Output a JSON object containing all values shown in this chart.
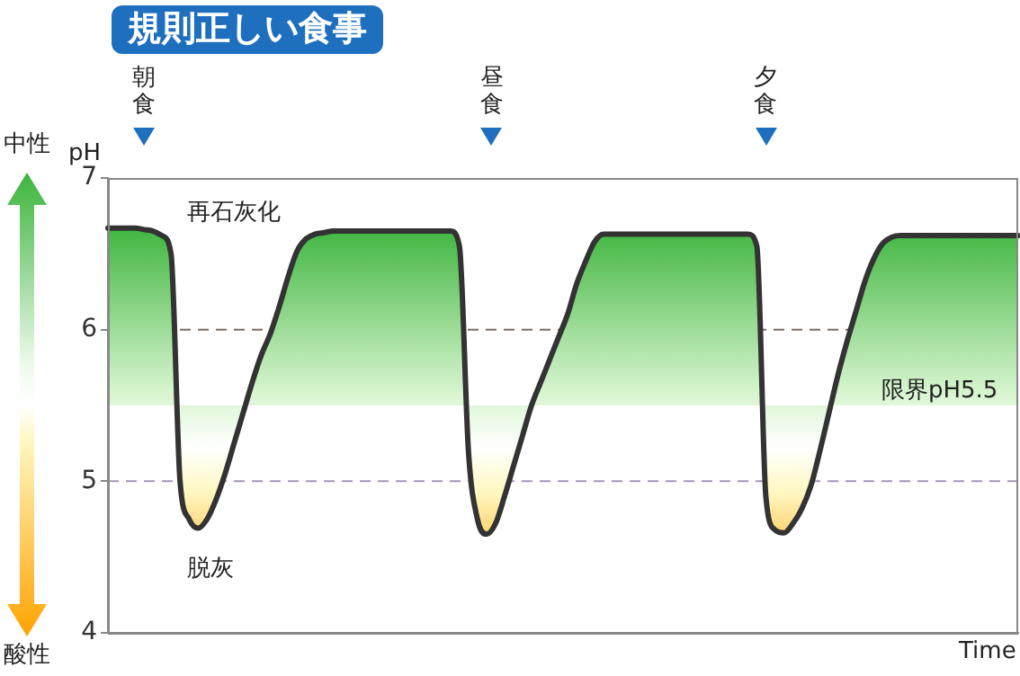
{
  "chart_data": {
    "type": "area",
    "title": "規則正しい食事",
    "ylabel": "pH",
    "xlabel": "Time",
    "categories": [
      null,
      null,
      null,
      null,
      null,
      null,
      null,
      null,
      null,
      null,
      null,
      null,
      null,
      null,
      null,
      null,
      null,
      null,
      null,
      null,
      null,
      null,
      null,
      null,
      null,
      null,
      null,
      null,
      null,
      null,
      null,
      null,
      null,
      null,
      null,
      null,
      null,
      null,
      null,
      null,
      null,
      null,
      null,
      null,
      null,
      null,
      null,
      null,
      null,
      null,
      null,
      null,
      null,
      null,
      null,
      null,
      null,
      null,
      null,
      null,
      null,
      null,
      null,
      null,
      null,
      null,
      null,
      null,
      null,
      null,
      null,
      null,
      null,
      null,
      null,
      null,
      null,
      null,
      null,
      null,
      null,
      null,
      null,
      null,
      null,
      null,
      null,
      null,
      null,
      null,
      null,
      null,
      null,
      null,
      null,
      null,
      null,
      null,
      null,
      null,
      null,
      null
    ],
    "series": [
      {
        "color": "#333333",
        "values": [
          6.67,
          6.67,
          6.67,
          6.67,
          6.66,
          6.65,
          6.62,
          6.5,
          5.0,
          4.75,
          4.69,
          4.75,
          4.88,
          5.05,
          5.25,
          5.45,
          5.65,
          5.83,
          5.97,
          6.15,
          6.35,
          6.52,
          6.6,
          6.63,
          6.64,
          6.65,
          6.65,
          6.65,
          6.65,
          6.65,
          6.65,
          6.65,
          6.65,
          6.65,
          6.65,
          6.65,
          6.65,
          6.65,
          6.65,
          6.55,
          5.2,
          4.75,
          4.65,
          4.72,
          4.9,
          5.1,
          5.3,
          5.5,
          5.65,
          5.8,
          5.95,
          6.1,
          6.3,
          6.45,
          6.58,
          6.63,
          6.63,
          6.63,
          6.63,
          6.63,
          6.63,
          6.63,
          6.63,
          6.63,
          6.63,
          6.63,
          6.63,
          6.63,
          6.63,
          6.63,
          6.63,
          6.63,
          6.55,
          4.9,
          4.68,
          4.66,
          4.72,
          4.82,
          4.97,
          5.2,
          5.45,
          5.7,
          5.92,
          6.12,
          6.32,
          6.47,
          6.57,
          6.61,
          6.62,
          6.62,
          6.62,
          6.62,
          6.62,
          6.62,
          6.62,
          6.62,
          6.62,
          6.62,
          6.62,
          6.62,
          6.62,
          6.62
        ]
      }
    ],
    "ylim": [
      4,
      7
    ],
    "yticks": [
      4,
      5,
      6,
      7
    ],
    "grid": false,
    "legend": false,
    "tick_labels": "y",
    "ref_lines": [
      {
        "axis": "y",
        "value": 6,
        "color": "#7a6e66",
        "line_style": "dashed"
      },
      {
        "axis": "y",
        "value": 5,
        "color": "#a596b4",
        "line_style": "dashed"
      }
    ],
    "annotations": [
      "再石灰化",
      "脱灰",
      {
        "text": "限界pH5.5",
        "y": 5.5
      },
      "朝食",
      "昼食",
      "夕食",
      "中性",
      "酸性"
    ]
  }
}
